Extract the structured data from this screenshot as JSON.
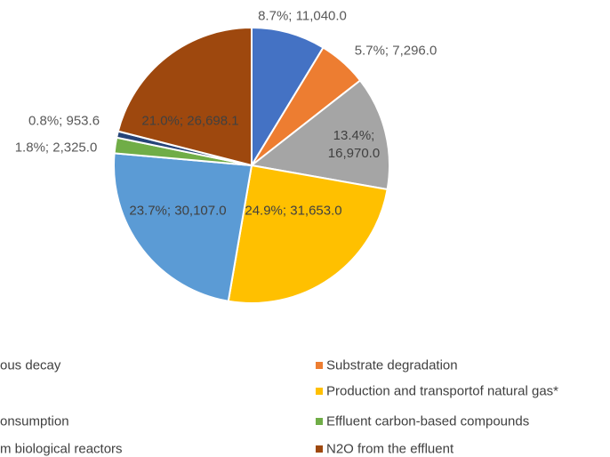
{
  "chart_data": {
    "type": "pie",
    "series": [
      {
        "name": "ous decay",
        "color": "#4472c4"
      },
      {
        "name": "Substrate degradation",
        "color": "#ed7d31"
      },
      {
        "name": null,
        "color": "#a5a5a5"
      },
      {
        "name": "Production and transportof natural gas*",
        "color": "#ffc000"
      },
      {
        "name": "onsumption",
        "color": "#5b9bd5"
      },
      {
        "name": "Effluent carbon-based compounds",
        "color": "#70ad47"
      },
      {
        "name": "m biological reactors",
        "color": "#264478"
      },
      {
        "name": "N2O from the effluent",
        "color": "#9e480e"
      }
    ],
    "values": [
      11040.0,
      7296.0,
      16970.0,
      31653.0,
      30107.0,
      2325.0,
      953.6,
      26698.1
    ],
    "value_labels": [
      "8.7%; 11,040.0",
      "5.7%; 7,296.0",
      "13.4%; 16,970.0",
      "24.9%; 31,653.0",
      "23.7%; 30,107.0",
      "1.8%; 2,325.0",
      "0.8%; 953.6",
      "21.0%; 26,698.1"
    ]
  }
}
